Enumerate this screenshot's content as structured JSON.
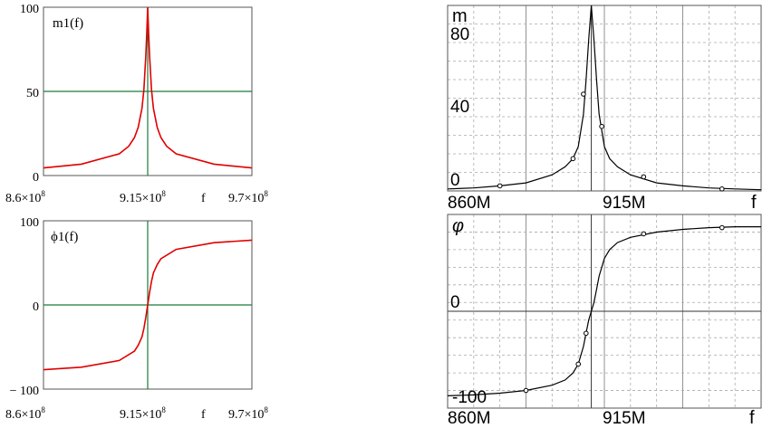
{
  "chart_data": [
    {
      "type": "line",
      "name": "m1(f)",
      "xlim": [
        860000000,
        970000000
      ],
      "ylim": [
        0,
        100
      ],
      "x_ticks": [
        {
          "mant": "8.6×10",
          "exp": "8"
        },
        {
          "mant": "9.15×10",
          "exp": "8"
        },
        {
          "mant": "9.7×10",
          "exp": "8"
        }
      ],
      "y_ticks": [
        "100",
        "50",
        "0"
      ],
      "xlabel": "f",
      "colors": {
        "curve": "#e00000",
        "ref": "#1b7a3a"
      },
      "series": [
        {
          "x": [
            860000000,
            880000000,
            900000000,
            905000000,
            908000000,
            910000000,
            912000000,
            913000000,
            914000000,
            914500000,
            915000000,
            915500000,
            916000000,
            917000000,
            918000000,
            920000000,
            922000000,
            925000000,
            930000000,
            950000000,
            970000000
          ],
          "y": [
            4.5,
            6.8,
            12.9,
            17.4,
            22.6,
            28.6,
            40,
            51,
            71,
            85,
            100,
            85,
            71,
            51,
            40,
            28.6,
            22.6,
            17.4,
            12.9,
            6.8,
            4.5
          ]
        }
      ]
    },
    {
      "type": "line",
      "name": "ϕ1(f)",
      "xlim": [
        860000000,
        970000000
      ],
      "ylim": [
        -100,
        100
      ],
      "x_ticks": [
        {
          "mant": "8.6×10",
          "exp": "8"
        },
        {
          "mant": "9.15×10",
          "exp": "8"
        },
        {
          "mant": "9.7×10",
          "exp": "8"
        }
      ],
      "y_ticks": [
        "100",
        "0",
        "− 100"
      ],
      "xlabel": "f",
      "colors": {
        "curve": "#e00000",
        "ref": "#1b7a3a"
      },
      "series": [
        {
          "x": [
            860000000,
            880000000,
            900000000,
            908000000,
            910000000,
            912000000,
            913000000,
            914000000,
            914500000,
            915000000,
            915500000,
            916000000,
            917000000,
            918000000,
            920000000,
            922000000,
            930000000,
            950000000,
            970000000
          ],
          "y": [
            -77,
            -74,
            -66,
            -55,
            -48,
            -38,
            -28,
            -15,
            -7,
            0,
            7,
            15,
            28,
            38,
            48,
            55,
            66,
            74,
            77
          ]
        }
      ]
    },
    {
      "type": "line",
      "name": "m",
      "xlim": [
        860,
        980
      ],
      "ylim": [
        0,
        92
      ],
      "x_ticks": [
        "860M",
        "915M"
      ],
      "y_ticks": [
        "80",
        "40",
        "0"
      ],
      "xlabel": "f",
      "grid": true,
      "series": [
        {
          "x": [
            860,
            870,
            880,
            890,
            900,
            905,
            908,
            910,
            912,
            913,
            914,
            915,
            916,
            917,
            918,
            920,
            922,
            925,
            930,
            940,
            950,
            960,
            970,
            980
          ],
          "y": [
            1,
            1.5,
            2.5,
            4,
            8,
            12,
            16,
            22,
            38,
            55,
            75,
            92,
            75,
            55,
            38,
            22,
            16,
            12,
            8,
            4,
            2.5,
            1.5,
            1,
            0.6
          ]
        },
        {
          "x": [
            880,
            908,
            912,
            919,
            935,
            965
          ],
          "y": [
            2.5,
            16,
            48,
            32,
            7,
            1
          ]
        }
      ]
    },
    {
      "type": "line",
      "name": "φ",
      "xlim": [
        860,
        980
      ],
      "ylim": [
        -110,
        110
      ],
      "x_ticks": [
        "860M",
        "915M"
      ],
      "y_ticks": [
        "0",
        "-100"
      ],
      "xlabel": "f",
      "grid": true,
      "series": [
        {
          "x": [
            860,
            870,
            880,
            890,
            900,
            905,
            908,
            910,
            912,
            913,
            914,
            915,
            916,
            917,
            918,
            920,
            922,
            925,
            930,
            940,
            950,
            960,
            970,
            980
          ],
          "y": [
            -96,
            -95,
            -93,
            -90,
            -84,
            -78,
            -70,
            -60,
            -40,
            -25,
            -10,
            0,
            10,
            25,
            40,
            60,
            70,
            78,
            84,
            90,
            93,
            95,
            96,
            96
          ]
        },
        {
          "x": [
            890,
            910,
            913,
            935,
            965
          ],
          "y": [
            -90,
            -60,
            -25,
            88,
            95
          ]
        }
      ]
    }
  ]
}
